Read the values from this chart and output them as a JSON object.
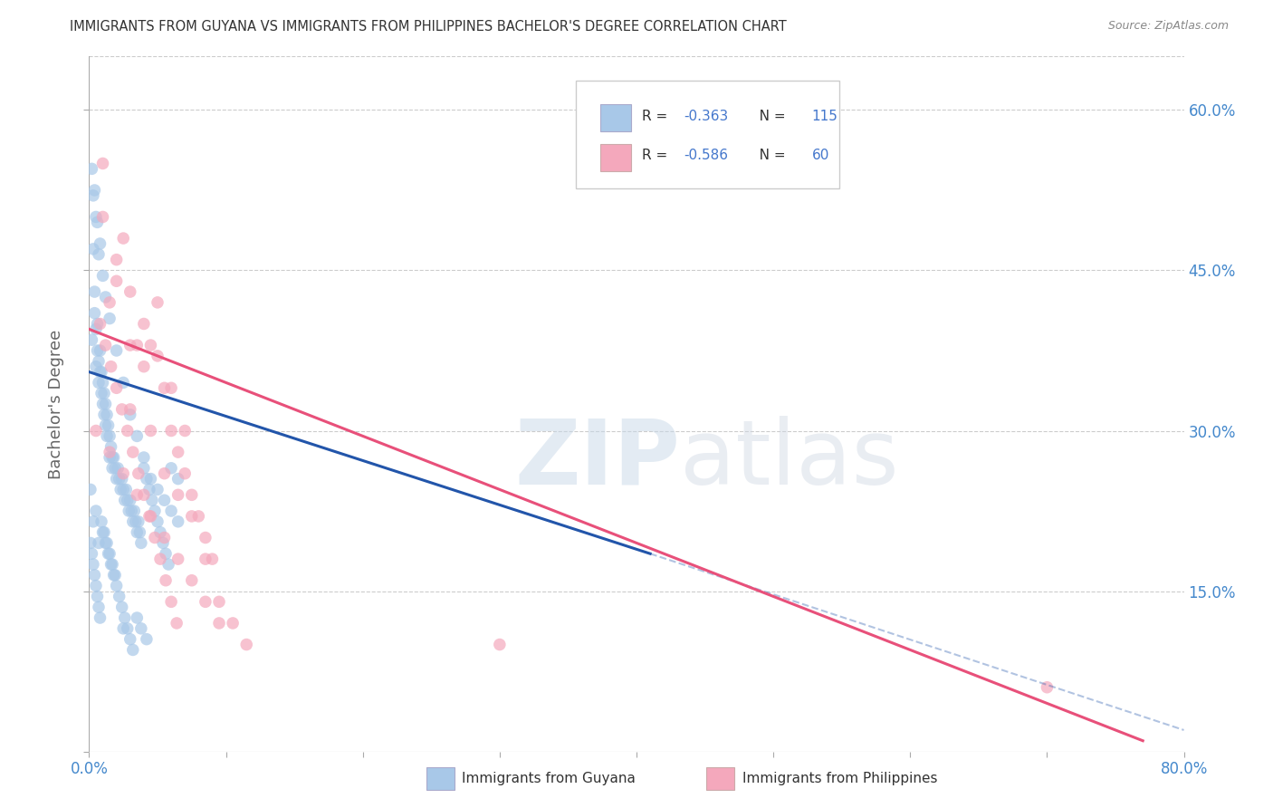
{
  "title": "IMMIGRANTS FROM GUYANA VS IMMIGRANTS FROM PHILIPPINES BACHELOR'S DEGREE CORRELATION CHART",
  "source": "Source: ZipAtlas.com",
  "ylabel": "Bachelor's Degree",
  "xmin": 0.0,
  "xmax": 0.8,
  "ymin": 0.0,
  "ymax": 0.65,
  "yticks": [
    0.0,
    0.15,
    0.3,
    0.45,
    0.6
  ],
  "ytick_labels": [
    "",
    "15.0%",
    "30.0%",
    "45.0%",
    "60.0%"
  ],
  "xticks": [
    0.0,
    0.1,
    0.2,
    0.3,
    0.4,
    0.5,
    0.6,
    0.7,
    0.8
  ],
  "xtick_labels": [
    "0.0%",
    "",
    "",
    "",
    "",
    "",
    "",
    "",
    "80.0%"
  ],
  "guyana_R": "-0.363",
  "guyana_N": "115",
  "philippines_R": "-0.586",
  "philippines_N": "60",
  "guyana_color": "#a8c8e8",
  "philippines_color": "#f4a8bc",
  "guyana_line_color": "#2255aa",
  "philippines_line_color": "#e8507a",
  "guyana_scatter": [
    [
      0.002,
      0.385
    ],
    [
      0.003,
      0.47
    ],
    [
      0.004,
      0.41
    ],
    [
      0.004,
      0.43
    ],
    [
      0.005,
      0.395
    ],
    [
      0.005,
      0.36
    ],
    [
      0.006,
      0.375
    ],
    [
      0.006,
      0.4
    ],
    [
      0.007,
      0.365
    ],
    [
      0.007,
      0.345
    ],
    [
      0.008,
      0.355
    ],
    [
      0.008,
      0.375
    ],
    [
      0.009,
      0.335
    ],
    [
      0.009,
      0.355
    ],
    [
      0.01,
      0.345
    ],
    [
      0.01,
      0.325
    ],
    [
      0.011,
      0.335
    ],
    [
      0.011,
      0.315
    ],
    [
      0.012,
      0.325
    ],
    [
      0.012,
      0.305
    ],
    [
      0.013,
      0.315
    ],
    [
      0.013,
      0.295
    ],
    [
      0.014,
      0.305
    ],
    [
      0.015,
      0.295
    ],
    [
      0.015,
      0.275
    ],
    [
      0.016,
      0.285
    ],
    [
      0.017,
      0.275
    ],
    [
      0.017,
      0.265
    ],
    [
      0.018,
      0.275
    ],
    [
      0.019,
      0.265
    ],
    [
      0.02,
      0.255
    ],
    [
      0.021,
      0.265
    ],
    [
      0.022,
      0.255
    ],
    [
      0.023,
      0.245
    ],
    [
      0.024,
      0.255
    ],
    [
      0.025,
      0.245
    ],
    [
      0.026,
      0.235
    ],
    [
      0.027,
      0.245
    ],
    [
      0.028,
      0.235
    ],
    [
      0.029,
      0.225
    ],
    [
      0.03,
      0.235
    ],
    [
      0.031,
      0.225
    ],
    [
      0.032,
      0.215
    ],
    [
      0.033,
      0.225
    ],
    [
      0.034,
      0.215
    ],
    [
      0.035,
      0.205
    ],
    [
      0.036,
      0.215
    ],
    [
      0.037,
      0.205
    ],
    [
      0.038,
      0.195
    ],
    [
      0.005,
      0.5
    ],
    [
      0.007,
      0.465
    ],
    [
      0.01,
      0.445
    ],
    [
      0.012,
      0.425
    ],
    [
      0.015,
      0.405
    ],
    [
      0.003,
      0.52
    ],
    [
      0.006,
      0.495
    ],
    [
      0.008,
      0.475
    ],
    [
      0.002,
      0.545
    ],
    [
      0.004,
      0.525
    ],
    [
      0.02,
      0.375
    ],
    [
      0.025,
      0.345
    ],
    [
      0.03,
      0.315
    ],
    [
      0.035,
      0.295
    ],
    [
      0.04,
      0.275
    ],
    [
      0.045,
      0.255
    ],
    [
      0.05,
      0.245
    ],
    [
      0.055,
      0.235
    ],
    [
      0.06,
      0.225
    ],
    [
      0.065,
      0.215
    ],
    [
      0.001,
      0.195
    ],
    [
      0.002,
      0.185
    ],
    [
      0.003,
      0.175
    ],
    [
      0.004,
      0.165
    ],
    [
      0.005,
      0.155
    ],
    [
      0.006,
      0.145
    ],
    [
      0.007,
      0.135
    ],
    [
      0.008,
      0.125
    ],
    [
      0.01,
      0.205
    ],
    [
      0.012,
      0.195
    ],
    [
      0.014,
      0.185
    ],
    [
      0.016,
      0.175
    ],
    [
      0.018,
      0.165
    ],
    [
      0.02,
      0.155
    ],
    [
      0.022,
      0.145
    ],
    [
      0.024,
      0.135
    ],
    [
      0.026,
      0.125
    ],
    [
      0.028,
      0.115
    ],
    [
      0.03,
      0.105
    ],
    [
      0.032,
      0.095
    ],
    [
      0.001,
      0.245
    ],
    [
      0.003,
      0.215
    ],
    [
      0.005,
      0.225
    ],
    [
      0.007,
      0.195
    ],
    [
      0.009,
      0.215
    ],
    [
      0.011,
      0.205
    ],
    [
      0.013,
      0.195
    ],
    [
      0.015,
      0.185
    ],
    [
      0.017,
      0.175
    ],
    [
      0.019,
      0.165
    ],
    [
      0.04,
      0.265
    ],
    [
      0.042,
      0.255
    ],
    [
      0.044,
      0.245
    ],
    [
      0.046,
      0.235
    ],
    [
      0.048,
      0.225
    ],
    [
      0.05,
      0.215
    ],
    [
      0.052,
      0.205
    ],
    [
      0.054,
      0.195
    ],
    [
      0.056,
      0.185
    ],
    [
      0.058,
      0.175
    ],
    [
      0.06,
      0.265
    ],
    [
      0.065,
      0.255
    ],
    [
      0.035,
      0.125
    ],
    [
      0.038,
      0.115
    ],
    [
      0.042,
      0.105
    ],
    [
      0.025,
      0.115
    ]
  ],
  "philippines_scatter": [
    [
      0.01,
      0.55
    ],
    [
      0.025,
      0.48
    ],
    [
      0.015,
      0.42
    ],
    [
      0.02,
      0.44
    ],
    [
      0.05,
      0.42
    ],
    [
      0.035,
      0.38
    ],
    [
      0.04,
      0.36
    ],
    [
      0.045,
      0.38
    ],
    [
      0.055,
      0.34
    ],
    [
      0.06,
      0.3
    ],
    [
      0.065,
      0.28
    ],
    [
      0.07,
      0.26
    ],
    [
      0.075,
      0.24
    ],
    [
      0.08,
      0.22
    ],
    [
      0.085,
      0.2
    ],
    [
      0.09,
      0.18
    ],
    [
      0.008,
      0.4
    ],
    [
      0.012,
      0.38
    ],
    [
      0.016,
      0.36
    ],
    [
      0.02,
      0.34
    ],
    [
      0.024,
      0.32
    ],
    [
      0.028,
      0.3
    ],
    [
      0.032,
      0.28
    ],
    [
      0.036,
      0.26
    ],
    [
      0.04,
      0.24
    ],
    [
      0.044,
      0.22
    ],
    [
      0.048,
      0.2
    ],
    [
      0.052,
      0.18
    ],
    [
      0.056,
      0.16
    ],
    [
      0.06,
      0.14
    ],
    [
      0.064,
      0.12
    ],
    [
      0.01,
      0.5
    ],
    [
      0.02,
      0.46
    ],
    [
      0.03,
      0.43
    ],
    [
      0.04,
      0.4
    ],
    [
      0.05,
      0.37
    ],
    [
      0.06,
      0.34
    ],
    [
      0.07,
      0.3
    ],
    [
      0.3,
      0.1
    ],
    [
      0.7,
      0.06
    ],
    [
      0.005,
      0.3
    ],
    [
      0.015,
      0.28
    ],
    [
      0.025,
      0.26
    ],
    [
      0.035,
      0.24
    ],
    [
      0.045,
      0.22
    ],
    [
      0.055,
      0.2
    ],
    [
      0.065,
      0.18
    ],
    [
      0.075,
      0.16
    ],
    [
      0.085,
      0.14
    ],
    [
      0.095,
      0.12
    ],
    [
      0.03,
      0.38
    ],
    [
      0.03,
      0.32
    ],
    [
      0.045,
      0.3
    ],
    [
      0.055,
      0.26
    ],
    [
      0.065,
      0.24
    ],
    [
      0.075,
      0.22
    ],
    [
      0.085,
      0.18
    ],
    [
      0.095,
      0.14
    ],
    [
      0.105,
      0.12
    ],
    [
      0.115,
      0.1
    ]
  ],
  "guyana_line": {
    "x0": 0.0,
    "y0": 0.355,
    "x1": 0.41,
    "y1": 0.185
  },
  "philippines_line": {
    "x0": 0.0,
    "y0": 0.395,
    "x1": 0.77,
    "y1": 0.01
  },
  "dashed_line": {
    "x0": 0.41,
    "y0": 0.185,
    "x1": 0.8,
    "y1": 0.02
  },
  "watermark_zip": "ZIP",
  "watermark_atlas": "atlas",
  "background_color": "#ffffff",
  "grid_color": "#cccccc",
  "title_color": "#333333",
  "axis_label_color": "#666666",
  "tick_color": "#4488cc",
  "legend_box_color": "#ffffff",
  "legend_r_color": "#4477cc",
  "legend_n_color": "#333333"
}
